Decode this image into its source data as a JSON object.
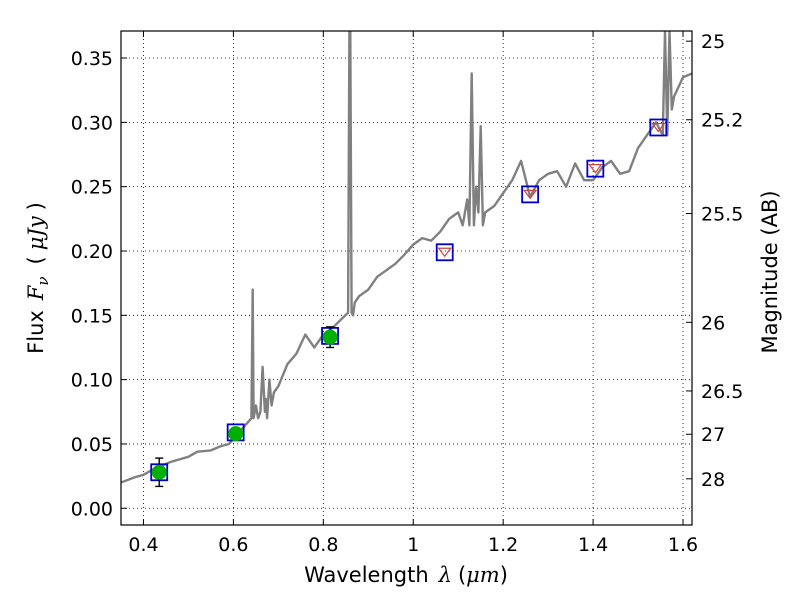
{
  "chart_data": {
    "type": "line",
    "title": "",
    "xlabel": {
      "pre": "Wavelength",
      "sym": "λ",
      "unit_pre": "(",
      "unit": "μm",
      "unit_post": ")"
    },
    "ylabel": {
      "pre": "Flux",
      "sym": "F",
      "sub": "ν",
      "unit_pre": "(",
      "unit": "μJy",
      "unit_post": ")"
    },
    "ylabel_right": "Magnitude (AB)",
    "xlim": [
      0.35,
      1.62
    ],
    "ylim": [
      -0.013,
      0.371
    ],
    "grid": true,
    "grid_style": "dotted",
    "x_ticks": [
      {
        "v": 0.4,
        "label": "0.4"
      },
      {
        "v": 0.6,
        "label": "0.6"
      },
      {
        "v": 0.8,
        "label": "0.8"
      },
      {
        "v": 1.0,
        "label": "1"
      },
      {
        "v": 1.2,
        "label": "1.2"
      },
      {
        "v": 1.4,
        "label": "1.4"
      },
      {
        "v": 1.6,
        "label": "1.6"
      }
    ],
    "y_ticks": [
      {
        "v": 0.0,
        "label": "0.00"
      },
      {
        "v": 0.05,
        "label": "0.05"
      },
      {
        "v": 0.1,
        "label": "0.10"
      },
      {
        "v": 0.15,
        "label": "0.15"
      },
      {
        "v": 0.2,
        "label": "0.20"
      },
      {
        "v": 0.25,
        "label": "0.25"
      },
      {
        "v": 0.3,
        "label": "0.30"
      },
      {
        "v": 0.35,
        "label": "0.35"
      }
    ],
    "right_ticks": [
      {
        "mag": 25,
        "label": "25"
      },
      {
        "mag": 25.2,
        "label": "25.2"
      },
      {
        "mag": 25.5,
        "label": "25.5"
      },
      {
        "mag": 26,
        "label": "26"
      },
      {
        "mag": 26.5,
        "label": "26.5"
      },
      {
        "mag": 27,
        "label": "27"
      },
      {
        "mag": 28,
        "label": "28"
      }
    ],
    "colors": {
      "spectrum": "#808080",
      "observed": "#00b000",
      "model_box": "#0000cc",
      "upper": "#cc4444"
    },
    "series": [
      {
        "kind": "spectrum",
        "x": [
          0.35,
          0.38,
          0.4,
          0.42,
          0.44,
          0.46,
          0.48,
          0.5,
          0.52,
          0.55,
          0.57,
          0.59,
          0.6,
          0.61,
          0.62,
          0.63,
          0.64,
          0.643,
          0.645,
          0.65,
          0.655,
          0.66,
          0.665,
          0.67,
          0.672,
          0.675,
          0.68,
          0.685,
          0.69,
          0.7,
          0.72,
          0.74,
          0.76,
          0.78,
          0.8,
          0.82,
          0.84,
          0.855,
          0.858,
          0.86,
          0.863,
          0.866,
          0.87,
          0.88,
          0.9,
          0.92,
          0.94,
          0.96,
          0.98,
          1.0,
          1.02,
          1.04,
          1.06,
          1.08,
          1.1,
          1.11,
          1.12,
          1.125,
          1.13,
          1.135,
          1.14,
          1.145,
          1.15,
          1.155,
          1.16,
          1.18,
          1.2,
          1.22,
          1.24,
          1.26,
          1.28,
          1.3,
          1.32,
          1.34,
          1.36,
          1.38,
          1.4,
          1.42,
          1.44,
          1.46,
          1.48,
          1.5,
          1.52,
          1.54,
          1.555,
          1.56,
          1.565,
          1.57,
          1.575,
          1.58,
          1.6,
          1.62
        ],
        "y": [
          0.02,
          0.024,
          0.026,
          0.03,
          0.033,
          0.036,
          0.038,
          0.04,
          0.044,
          0.045,
          0.048,
          0.05,
          0.054,
          0.058,
          0.062,
          0.066,
          0.07,
          0.17,
          0.07,
          0.08,
          0.07,
          0.075,
          0.11,
          0.075,
          0.085,
          0.07,
          0.1,
          0.08,
          0.09,
          0.095,
          0.112,
          0.12,
          0.135,
          0.125,
          0.135,
          0.14,
          0.147,
          0.152,
          0.371,
          0.371,
          0.152,
          0.15,
          0.16,
          0.165,
          0.17,
          0.18,
          0.185,
          0.19,
          0.197,
          0.205,
          0.21,
          0.208,
          0.215,
          0.225,
          0.23,
          0.22,
          0.24,
          0.22,
          0.338,
          0.22,
          0.25,
          0.23,
          0.297,
          0.22,
          0.23,
          0.235,
          0.245,
          0.255,
          0.27,
          0.242,
          0.255,
          0.26,
          0.262,
          0.25,
          0.268,
          0.255,
          0.255,
          0.265,
          0.27,
          0.26,
          0.262,
          0.28,
          0.29,
          0.3,
          0.29,
          0.371,
          0.29,
          0.371,
          0.31,
          0.32,
          0.335,
          0.338
        ]
      },
      {
        "kind": "observed",
        "points": [
          {
            "x": 0.435,
            "y": 0.028,
            "err": 0.011
          },
          {
            "x": 0.605,
            "y": 0.058,
            "err": 0.004
          },
          {
            "x": 0.815,
            "y": 0.133,
            "err": 0.008
          }
        ]
      },
      {
        "kind": "model",
        "points": [
          {
            "x": 0.435,
            "y": 0.028
          },
          {
            "x": 0.605,
            "y": 0.059
          },
          {
            "x": 0.815,
            "y": 0.134
          },
          {
            "x": 1.07,
            "y": 0.199
          },
          {
            "x": 1.26,
            "y": 0.244
          },
          {
            "x": 1.405,
            "y": 0.264
          },
          {
            "x": 1.545,
            "y": 0.296
          }
        ]
      },
      {
        "kind": "upper",
        "points": [
          {
            "x": 1.07,
            "y": 0.199
          },
          {
            "x": 1.26,
            "y": 0.244
          },
          {
            "x": 1.405,
            "y": 0.264
          },
          {
            "x": 1.545,
            "y": 0.296
          }
        ]
      }
    ]
  }
}
